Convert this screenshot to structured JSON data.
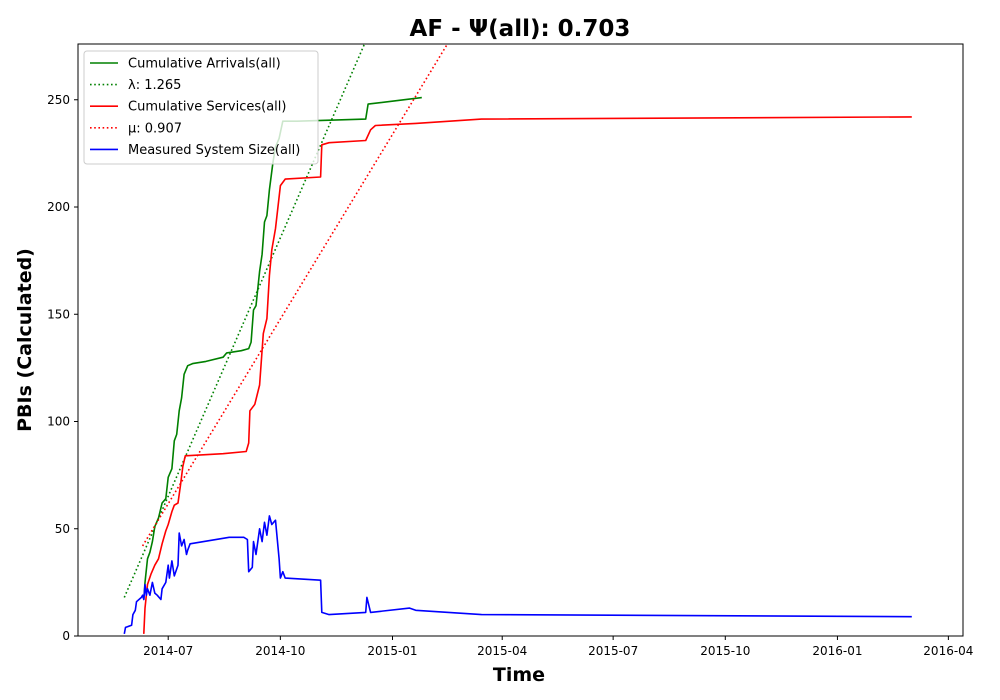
{
  "chart_data": {
    "type": "line",
    "title": "AF -  Ψ(all): 0.703",
    "xlabel": "Time",
    "ylabel": "PBIs (Calculated)",
    "x_type": "date",
    "xlim": [
      "2014-04-18",
      "2016-04-13"
    ],
    "ylim": [
      0,
      276
    ],
    "x_ticks": [
      "2014-07-01",
      "2014-10-01",
      "2015-01-01",
      "2015-04-01",
      "2015-07-01",
      "2015-10-01",
      "2016-01-01",
      "2016-04-01"
    ],
    "x_tick_labels": [
      "2014-07",
      "2014-10",
      "2015-01",
      "2015-04",
      "2015-07",
      "2015-10",
      "2016-01",
      "2016-04"
    ],
    "y_ticks": [
      0,
      50,
      100,
      150,
      200,
      250
    ],
    "grid": false,
    "legend_position": "upper-left",
    "series": [
      {
        "name": "Cumulative Arrivals(all)",
        "legend_label": "Cumulative Arrivals(all)",
        "color": "#008000",
        "style": "solid",
        "points": [
          [
            "2014-06-11",
            17
          ],
          [
            "2014-06-12",
            25
          ],
          [
            "2014-06-14",
            36
          ],
          [
            "2014-06-16",
            39
          ],
          [
            "2014-06-18",
            44
          ],
          [
            "2014-06-20",
            51
          ],
          [
            "2014-06-23",
            55
          ],
          [
            "2014-06-26",
            62
          ],
          [
            "2014-06-29",
            64
          ],
          [
            "2014-07-01",
            74
          ],
          [
            "2014-07-04",
            78
          ],
          [
            "2014-07-06",
            91
          ],
          [
            "2014-07-08",
            94
          ],
          [
            "2014-07-10",
            105
          ],
          [
            "2014-07-12",
            111
          ],
          [
            "2014-07-14",
            122
          ],
          [
            "2014-07-17",
            126
          ],
          [
            "2014-07-21",
            127
          ],
          [
            "2014-08-01",
            128
          ],
          [
            "2014-08-15",
            130
          ],
          [
            "2014-08-18",
            132
          ],
          [
            "2014-08-30",
            133
          ],
          [
            "2014-09-05",
            134
          ],
          [
            "2014-09-07",
            137
          ],
          [
            "2014-09-09",
            152
          ],
          [
            "2014-09-11",
            154
          ],
          [
            "2014-09-14",
            170
          ],
          [
            "2014-09-16",
            178
          ],
          [
            "2014-09-18",
            193
          ],
          [
            "2014-09-20",
            196
          ],
          [
            "2014-09-22",
            208
          ],
          [
            "2014-09-25",
            221
          ],
          [
            "2014-09-27",
            228
          ],
          [
            "2014-09-30",
            232
          ],
          [
            "2014-10-03",
            240
          ],
          [
            "2014-10-15",
            240
          ],
          [
            "2014-12-10",
            241
          ],
          [
            "2014-12-12",
            248
          ],
          [
            "2015-01-10",
            250
          ],
          [
            "2015-01-25",
            251
          ]
        ]
      },
      {
        "name": "λ: 1.265",
        "legend_label": "λ: 1.265",
        "color": "#008000",
        "style": "dotted",
        "points": [
          [
            "2014-05-26",
            18
          ],
          [
            "2014-12-09",
            276
          ]
        ]
      },
      {
        "name": "Cumulative Services(all)",
        "legend_label": "Cumulative Services(all)",
        "color": "#ff0000",
        "style": "solid",
        "points": [
          [
            "2014-06-11",
            1
          ],
          [
            "2014-06-12",
            13
          ],
          [
            "2014-06-14",
            24
          ],
          [
            "2014-06-17",
            29
          ],
          [
            "2014-06-20",
            33
          ],
          [
            "2014-06-23",
            36
          ],
          [
            "2014-06-26",
            43
          ],
          [
            "2014-06-29",
            49
          ],
          [
            "2014-07-01",
            52
          ],
          [
            "2014-07-04",
            58
          ],
          [
            "2014-07-06",
            61
          ],
          [
            "2014-07-09",
            62
          ],
          [
            "2014-07-11",
            70
          ],
          [
            "2014-07-13",
            79
          ],
          [
            "2014-07-15",
            84
          ],
          [
            "2014-08-15",
            85
          ],
          [
            "2014-09-03",
            86
          ],
          [
            "2014-09-05",
            90
          ],
          [
            "2014-09-06",
            105
          ],
          [
            "2014-09-10",
            108
          ],
          [
            "2014-09-14",
            117
          ],
          [
            "2014-09-17",
            141
          ],
          [
            "2014-09-20",
            148
          ],
          [
            "2014-09-22",
            168
          ],
          [
            "2014-09-24",
            180
          ],
          [
            "2014-09-27",
            190
          ],
          [
            "2014-10-01",
            210
          ],
          [
            "2014-10-05",
            213
          ],
          [
            "2014-11-03",
            214
          ],
          [
            "2014-11-04",
            229
          ],
          [
            "2014-11-10",
            230
          ],
          [
            "2014-12-10",
            231
          ],
          [
            "2014-12-14",
            236
          ],
          [
            "2014-12-18",
            238
          ],
          [
            "2015-01-20",
            239
          ],
          [
            "2015-03-15",
            241
          ],
          [
            "2016-03-02",
            242
          ]
        ]
      },
      {
        "name": "μ: 0.907",
        "legend_label": "μ: 0.907",
        "color": "#ff0000",
        "style": "dotted",
        "points": [
          [
            "2014-06-10",
            42
          ],
          [
            "2015-02-15",
            276
          ]
        ]
      },
      {
        "name": "Measured System Size(all)",
        "legend_label": "Measured System Size(all)",
        "color": "#0000ff",
        "style": "solid",
        "points": [
          [
            "2014-05-26",
            1
          ],
          [
            "2014-05-27",
            4
          ],
          [
            "2014-06-01",
            5
          ],
          [
            "2014-06-02",
            10
          ],
          [
            "2014-06-04",
            12
          ],
          [
            "2014-06-05",
            16
          ],
          [
            "2014-06-09",
            18
          ],
          [
            "2014-06-10",
            19
          ],
          [
            "2014-06-11",
            17
          ],
          [
            "2014-06-12",
            24
          ],
          [
            "2014-06-13",
            19
          ],
          [
            "2014-06-14",
            22
          ],
          [
            "2014-06-16",
            19
          ],
          [
            "2014-06-18",
            25
          ],
          [
            "2014-06-20",
            20
          ],
          [
            "2014-06-22",
            19
          ],
          [
            "2014-06-25",
            17
          ],
          [
            "2014-06-26",
            22
          ],
          [
            "2014-06-29",
            25
          ],
          [
            "2014-07-01",
            33
          ],
          [
            "2014-07-02",
            27
          ],
          [
            "2014-07-04",
            35
          ],
          [
            "2014-07-06",
            28
          ],
          [
            "2014-07-09",
            33
          ],
          [
            "2014-07-10",
            48
          ],
          [
            "2014-07-12",
            42
          ],
          [
            "2014-07-14",
            45
          ],
          [
            "2014-07-16",
            38
          ],
          [
            "2014-07-17",
            40
          ],
          [
            "2014-07-19",
            43
          ],
          [
            "2014-08-20",
            46
          ],
          [
            "2014-09-01",
            46
          ],
          [
            "2014-09-04",
            45
          ],
          [
            "2014-09-05",
            30
          ],
          [
            "2014-09-08",
            32
          ],
          [
            "2014-09-09",
            44
          ],
          [
            "2014-09-11",
            38
          ],
          [
            "2014-09-14",
            50
          ],
          [
            "2014-09-16",
            44
          ],
          [
            "2014-09-18",
            53
          ],
          [
            "2014-09-20",
            47
          ],
          [
            "2014-09-22",
            56
          ],
          [
            "2014-09-24",
            52
          ],
          [
            "2014-09-27",
            54
          ],
          [
            "2014-09-30",
            36
          ],
          [
            "2014-10-01",
            27
          ],
          [
            "2014-10-03",
            30
          ],
          [
            "2014-10-05",
            27
          ],
          [
            "2014-11-03",
            26
          ],
          [
            "2014-11-04",
            11
          ],
          [
            "2014-11-10",
            10
          ],
          [
            "2014-12-10",
            11
          ],
          [
            "2014-12-11",
            18
          ],
          [
            "2014-12-14",
            11
          ],
          [
            "2015-01-15",
            13
          ],
          [
            "2015-01-20",
            12
          ],
          [
            "2015-03-15",
            10
          ],
          [
            "2016-03-02",
            9
          ]
        ]
      }
    ]
  }
}
